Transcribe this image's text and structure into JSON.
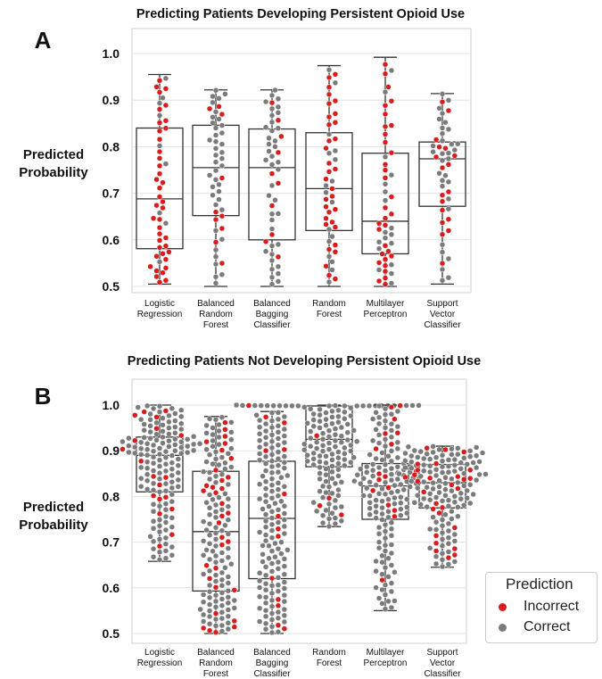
{
  "colors": {
    "incorrect": "#d91c1c",
    "correct": "#7b7b7b",
    "grid": "#e3e3e3",
    "box": "#333333"
  },
  "legend": {
    "title": "Prediction",
    "incorrect_label": "Incorrect",
    "correct_label": "Correct"
  },
  "chart_data": [
    {
      "type": "box-swarm",
      "panel_label": "A",
      "title": "Predicting Patients Developing Persistent Opioid Use",
      "ylabel": "Predicted Probability",
      "ylim": [
        0.49,
        1.05
      ],
      "yticks": [
        "0.5",
        "0.6",
        "0.7",
        "0.8",
        "0.9",
        "1.0"
      ],
      "grid": true,
      "categories": [
        [
          "Logistic",
          "Regression"
        ],
        [
          "Balanced",
          "Random",
          "Forest"
        ],
        [
          "Balanced",
          "Bagging",
          "Classifier"
        ],
        [
          "Random",
          "Forest"
        ],
        [
          "Multilayer",
          "Perceptron"
        ],
        [
          "Support",
          "Vector",
          "Classifier"
        ]
      ],
      "boxes": [
        {
          "min": 0.505,
          "q1": 0.581,
          "median": 0.688,
          "q3": 0.84,
          "max": 0.955,
          "n": 50,
          "incorrect_frac": 0.75
        },
        {
          "min": 0.5,
          "q1": 0.652,
          "median": 0.755,
          "q3": 0.846,
          "max": 0.922,
          "n": 50,
          "incorrect_frac": 0.2
        },
        {
          "min": 0.5,
          "q1": 0.6,
          "median": 0.755,
          "q3": 0.838,
          "max": 0.922,
          "n": 50,
          "incorrect_frac": 0.2
        },
        {
          "min": 0.5,
          "q1": 0.62,
          "median": 0.71,
          "q3": 0.83,
          "max": 0.974,
          "n": 50,
          "incorrect_frac": 0.55
        },
        {
          "min": 0.5,
          "q1": 0.57,
          "median": 0.64,
          "q3": 0.786,
          "max": 0.992,
          "n": 50,
          "incorrect_frac": 0.6
        },
        {
          "min": 0.505,
          "q1": 0.672,
          "median": 0.774,
          "q3": 0.81,
          "max": 0.914,
          "n": 50,
          "incorrect_frac": 0.4
        }
      ]
    },
    {
      "type": "box-swarm",
      "panel_label": "B",
      "title": "Predicting Patients Not Developing Persistent Opioid Use",
      "ylabel": "Predicted Probability",
      "ylim": [
        0.49,
        1.03
      ],
      "yticks": [
        "0.5",
        "0.6",
        "0.7",
        "0.8",
        "0.9",
        "1.0"
      ],
      "grid": true,
      "categories": [
        [
          "Logistic",
          "Regression"
        ],
        [
          "Balanced",
          "Random",
          "Forest"
        ],
        [
          "Balanced",
          "Bagging",
          "Classifier"
        ],
        [
          "Random",
          "Forest"
        ],
        [
          "Multilayer",
          "Perceptron"
        ],
        [
          "Support",
          "Vector",
          "Classifier"
        ]
      ],
      "boxes": [
        {
          "min": 0.658,
          "q1": 0.81,
          "median": 0.89,
          "q3": 0.93,
          "max": 1.0,
          "n": 150,
          "incorrect_frac": 0.08
        },
        {
          "min": 0.5,
          "q1": 0.593,
          "median": 0.723,
          "q3": 0.855,
          "max": 0.975,
          "n": 150,
          "incorrect_frac": 0.2
        },
        {
          "min": 0.5,
          "q1": 0.62,
          "median": 0.752,
          "q3": 0.877,
          "max": 0.986,
          "n": 150,
          "incorrect_frac": 0.08
        },
        {
          "min": 0.734,
          "q1": 0.865,
          "median": 0.925,
          "q3": 0.998,
          "max": 1.0,
          "n": 150,
          "incorrect_frac": 0.02
        },
        {
          "min": 0.55,
          "q1": 0.75,
          "median": 0.823,
          "q3": 0.872,
          "max": 1.0,
          "n": 150,
          "incorrect_frac": 0.1
        },
        {
          "min": 0.645,
          "q1": 0.775,
          "median": 0.83,
          "q3": 0.87,
          "max": 0.91,
          "n": 150,
          "incorrect_frac": 0.15
        }
      ]
    }
  ]
}
